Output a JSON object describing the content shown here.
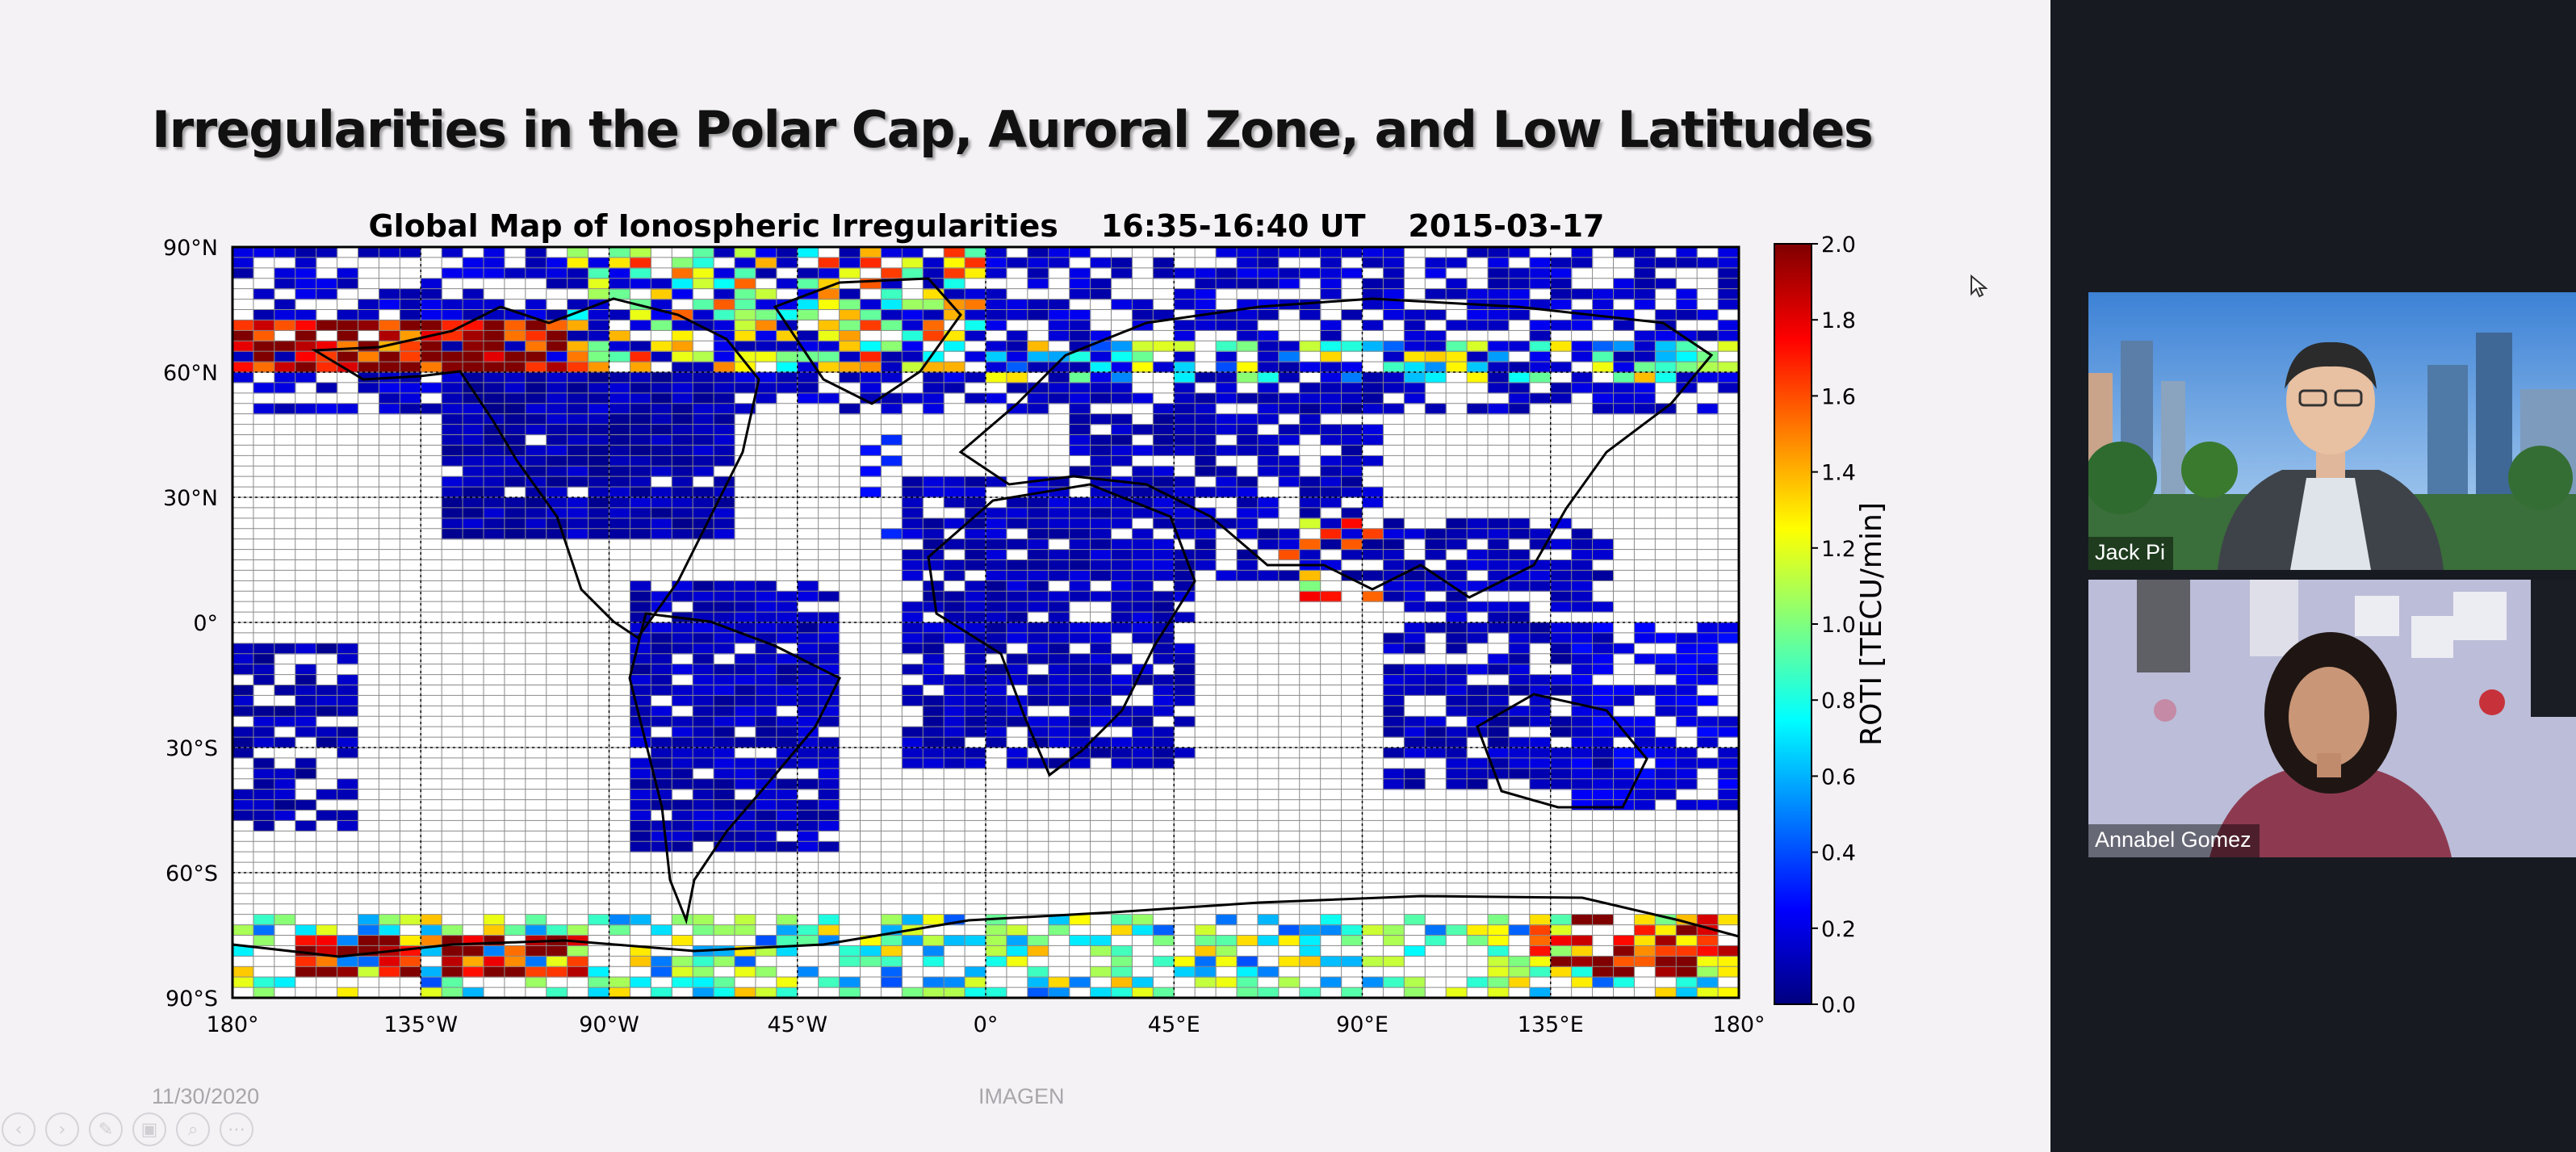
{
  "slide": {
    "title": "Irregularities in the Polar Cap, Auroral Zone, and Low Latitudes",
    "footer_date": "11/30/2020",
    "footer_org": "IMAGEN",
    "controls": [
      {
        "name": "previous-slide-button",
        "glyph": "‹"
      },
      {
        "name": "next-slide-button",
        "glyph": "›"
      },
      {
        "name": "pen-tool-button",
        "glyph": "✎"
      },
      {
        "name": "slides-overview-button",
        "glyph": "▣"
      },
      {
        "name": "zoom-button",
        "glyph": "⌕"
      },
      {
        "name": "more-options-button",
        "glyph": "⋯"
      }
    ]
  },
  "chart_data": {
    "type": "heatmap",
    "title": "Global Map of Ionospheric Irregularities    16:35-16:40 UT    2015-03-17",
    "x_ticks": [
      "180°",
      "135°W",
      "90°W",
      "45°W",
      "0°",
      "45°E",
      "90°E",
      "135°E",
      "180°"
    ],
    "y_ticks": [
      "90°N",
      "60°N",
      "30°N",
      "0°",
      "30°S",
      "60°S",
      "90°S"
    ],
    "xlim": [
      -180,
      180
    ],
    "ylim": [
      -90,
      90
    ],
    "colorbar": {
      "label": "ROTI [TECU/min]",
      "ticks": [
        "2.0",
        "1.8",
        "1.6",
        "1.4",
        "1.2",
        "1.0",
        "0.8",
        "0.6",
        "0.4",
        "0.2",
        "0.0"
      ],
      "range": [
        0,
        2
      ],
      "colormap": "jet"
    },
    "regions": [
      {
        "lon": [
          -180,
          180
        ],
        "lat": [
          50,
          90
        ],
        "roti": 0.15,
        "density": 0.6
      },
      {
        "lon": [
          -180,
          -100
        ],
        "lat": [
          60,
          72
        ],
        "roti": 1.9,
        "density": 0.9
      },
      {
        "lon": [
          -100,
          0
        ],
        "lat": [
          60,
          90
        ],
        "roti": 1.2,
        "density": 0.5
      },
      {
        "lon": [
          0,
          180
        ],
        "lat": [
          56,
          66
        ],
        "roti": 0.9,
        "density": 0.55
      },
      {
        "lon": [
          -130,
          -60
        ],
        "lat": [
          20,
          60
        ],
        "roti": 0.1,
        "density": 0.95
      },
      {
        "lon": [
          -85,
          -35
        ],
        "lat": [
          -55,
          10
        ],
        "roti": 0.12,
        "density": 0.9
      },
      {
        "lon": [
          -20,
          50
        ],
        "lat": [
          -35,
          35
        ],
        "roti": 0.12,
        "density": 0.75
      },
      {
        "lon": [
          20,
          95
        ],
        "lat": [
          10,
          55
        ],
        "roti": 0.12,
        "density": 0.7
      },
      {
        "lon": [
          95,
          150
        ],
        "lat": [
          -40,
          25
        ],
        "roti": 0.12,
        "density": 0.75
      },
      {
        "lon": [
          140,
          180
        ],
        "lat": [
          -45,
          0
        ],
        "roti": 0.2,
        "density": 0.7
      },
      {
        "lon": [
          -180,
          -150
        ],
        "lat": [
          -50,
          -5
        ],
        "roti": 0.1,
        "density": 0.7
      },
      {
        "lon": [
          -180,
          180
        ],
        "lat": [
          -90,
          -70
        ],
        "roti": 0.9,
        "density": 0.55
      },
      {
        "lon": [
          -165,
          -95
        ],
        "lat": [
          -85,
          -75
        ],
        "roti": 1.9,
        "density": 0.8
      },
      {
        "lon": [
          130,
          180
        ],
        "lat": [
          -85,
          -72
        ],
        "roti": 1.7,
        "density": 0.75
      },
      {
        "lon": [
          -30,
          -20
        ],
        "lat": [
          20,
          45
        ],
        "roti": 0.3,
        "density": 0.4
      },
      {
        "lon": [
          70,
          95
        ],
        "lat": [
          5,
          25
        ],
        "roti": 1.3,
        "density": 0.3
      }
    ]
  },
  "video_tiles": [
    {
      "name": "Jack Pi",
      "theme": "city"
    },
    {
      "name": "Annabel Gomez",
      "theme": "room"
    }
  ],
  "colors": {
    "background": "#f4f2f5",
    "video_panel": "#171b21",
    "grid": "#555555"
  }
}
